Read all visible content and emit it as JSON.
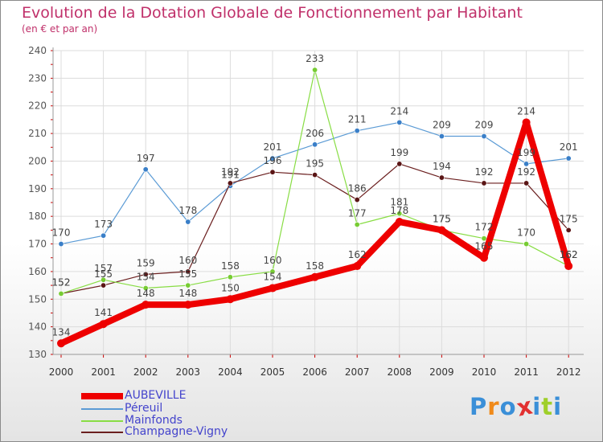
{
  "chart_data": {
    "type": "line",
    "title": "Evolution de la Dotation Globale de Fonctionnement par Habitant",
    "subtitle": "(en € et par an)",
    "xlabel": "",
    "ylabel": "",
    "x": [
      "2000",
      "2001",
      "2002",
      "2003",
      "2004",
      "2005",
      "2006",
      "2007",
      "2008",
      "2009",
      "2010",
      "2011",
      "2012"
    ],
    "ylim": [
      130,
      240
    ],
    "yticks": [
      130,
      140,
      150,
      160,
      170,
      180,
      190,
      200,
      210,
      220,
      230,
      240
    ],
    "grid": true,
    "legend_position": "bottom-left",
    "series": [
      {
        "name": "AUBEVILLE",
        "color": "#ee0000",
        "values": [
          134,
          141,
          148,
          148,
          150,
          154,
          158,
          162,
          178,
          175,
          165,
          214,
          162
        ]
      },
      {
        "name": "Péreuil",
        "color": "#5b9bd5",
        "values": [
          170,
          173,
          197,
          178,
          191,
          201,
          206,
          211,
          214,
          209,
          209,
          199,
          201
        ]
      },
      {
        "name": "Mainfonds",
        "color": "#88dd44",
        "values": [
          152,
          157,
          154,
          155,
          158,
          160,
          233,
          177,
          181,
          175,
          172,
          170,
          162
        ]
      },
      {
        "name": "Champagne-Vigny",
        "color": "#6b1f1f",
        "values": [
          152,
          155,
          159,
          160,
          192,
          196,
          195,
          186,
          199,
          194,
          192,
          192,
          175
        ]
      }
    ]
  },
  "legend": {
    "items": [
      "AUBEVILLE",
      "Péreuil",
      "Mainfonds",
      "Champagne-Vigny"
    ]
  },
  "logo": {
    "text": "Proxiti",
    "letters": [
      "P",
      "r",
      "o",
      "x",
      "i",
      "t",
      "i"
    ],
    "colors": [
      "#3a8fd8",
      "#f08a1a",
      "#3a8fd8",
      "#e23030",
      "#3a8fd8",
      "#9fcf2a",
      "#3a8fd8"
    ]
  }
}
